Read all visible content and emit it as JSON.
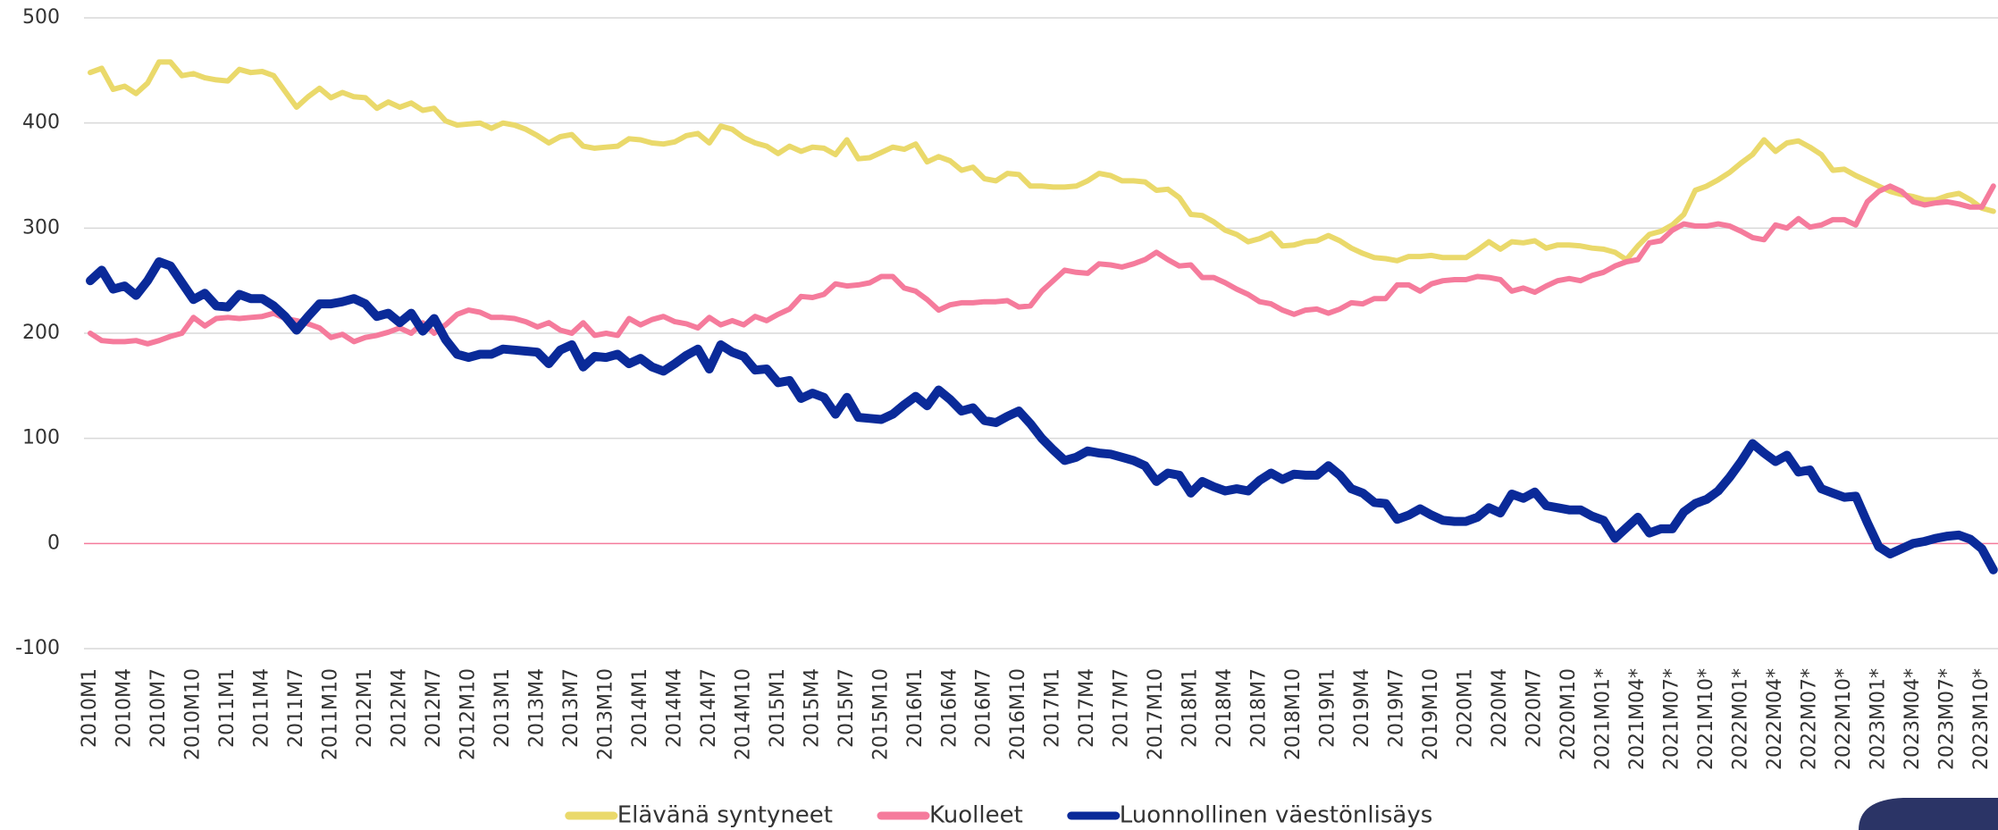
{
  "chart_data": {
    "type": "line",
    "categories": [
      "2010M1",
      null,
      null,
      "2010M4",
      null,
      null,
      "2010M7",
      null,
      null,
      "2010M10",
      null,
      null,
      "2011M1",
      null,
      null,
      "2011M4",
      null,
      null,
      "2011M7",
      null,
      null,
      "2011M10",
      null,
      null,
      "2012M1",
      null,
      null,
      "2012M4",
      null,
      null,
      "2012M7",
      null,
      null,
      "2012M10",
      null,
      null,
      "2013M1",
      null,
      null,
      "2013M4",
      null,
      null,
      "2013M7",
      null,
      null,
      "2013M10",
      null,
      null,
      "2014M1",
      null,
      null,
      "2014M4",
      null,
      null,
      "2014M7",
      null,
      null,
      "2014M10",
      null,
      null,
      "2015M1",
      null,
      null,
      "2015M4",
      null,
      null,
      "2015M7",
      null,
      null,
      "2015M10",
      null,
      null,
      "2016M1",
      null,
      null,
      "2016M4",
      null,
      null,
      "2016M7",
      null,
      null,
      "2016M10",
      null,
      null,
      "2017M1",
      null,
      null,
      "2017M4",
      null,
      null,
      "2017M7",
      null,
      null,
      "2017M10",
      null,
      null,
      "2018M1",
      null,
      null,
      "2018M4",
      null,
      null,
      "2018M7",
      null,
      null,
      "2018M10",
      null,
      null,
      "2019M1",
      null,
      null,
      "2019M4",
      null,
      null,
      "2019M7",
      null,
      null,
      "2019M10",
      null,
      null,
      "2020M1",
      null,
      null,
      "2020M4",
      null,
      null,
      "2020M7",
      null,
      null,
      "2020M10",
      null,
      null,
      "2021M01*",
      null,
      null,
      "2021M04*",
      null,
      null,
      "2021M07*",
      null,
      null,
      "2021M10*",
      null,
      null,
      "2022M01*",
      null,
      null,
      "2022M04*",
      null,
      null,
      "2022M07*",
      null,
      null,
      "2022M10*",
      null,
      null,
      "2023M01*",
      null,
      null,
      "2023M04*",
      null,
      null,
      "2023M07*",
      null,
      null,
      "2023M10*",
      null
    ],
    "series": [
      {
        "name": "Elävänä syntyneet",
        "color": "#ead96b",
        "values": [
          448,
          452,
          432,
          435,
          428,
          438,
          458,
          458,
          445,
          447,
          443,
          441,
          440,
          451,
          448,
          449,
          445,
          430,
          415,
          425,
          433,
          424,
          429,
          425,
          424,
          414,
          420,
          415,
          419,
          412,
          414,
          402,
          398,
          399,
          400,
          395,
          400,
          398,
          394,
          388,
          381,
          387,
          389,
          378,
          376,
          377,
          378,
          385,
          384,
          381,
          380,
          382,
          388,
          390,
          381,
          397,
          394,
          386,
          381,
          378,
          371,
          378,
          373,
          377,
          376,
          370,
          384,
          366,
          367,
          372,
          377,
          375,
          380,
          363,
          368,
          364,
          355,
          358,
          347,
          345,
          352,
          351,
          340,
          340,
          339,
          339,
          340,
          345,
          352,
          350,
          345,
          345,
          344,
          336,
          337,
          329,
          313,
          312,
          306,
          298,
          294,
          287,
          290,
          295,
          283,
          284,
          287,
          288,
          293,
          288,
          281,
          276,
          272,
          271,
          269,
          273,
          273,
          274,
          272,
          272,
          272,
          279,
          287,
          280,
          287,
          286,
          288,
          281,
          284,
          284,
          283,
          281,
          280,
          277,
          270,
          283,
          294,
          297,
          303,
          313,
          336,
          340,
          346,
          353,
          362,
          370,
          384,
          373,
          381,
          383,
          377,
          370,
          355,
          356,
          350,
          345,
          340,
          335,
          332,
          330,
          327,
          327,
          331,
          333,
          327,
          319,
          316
        ]
      },
      {
        "name": "Kuolleet",
        "color": "#f57b9c",
        "values": [
          200,
          193,
          192,
          192,
          193,
          190,
          193,
          197,
          200,
          215,
          207,
          214,
          215,
          214,
          215,
          216,
          219,
          214,
          212,
          209,
          205,
          196,
          199,
          192,
          196,
          198,
          201,
          205,
          200,
          210,
          200,
          208,
          218,
          222,
          220,
          215,
          215,
          214,
          211,
          206,
          210,
          203,
          200,
          210,
          198,
          200,
          198,
          214,
          208,
          213,
          216,
          211,
          209,
          205,
          215,
          208,
          212,
          208,
          216,
          212,
          218,
          223,
          235,
          234,
          237,
          247,
          245,
          246,
          248,
          254,
          254,
          243,
          240,
          232,
          222,
          227,
          229,
          229,
          230,
          230,
          231,
          225,
          226,
          240,
          250,
          260,
          258,
          257,
          266,
          265,
          263,
          266,
          270,
          277,
          270,
          264,
          265,
          253,
          253,
          248,
          242,
          237,
          230,
          228,
          222,
          218,
          222,
          223,
          219,
          223,
          229,
          228,
          233,
          233,
          246,
          246,
          240,
          247,
          250,
          251,
          251,
          254,
          253,
          251,
          240,
          243,
          239,
          245,
          250,
          252,
          250,
          255,
          258,
          264,
          268,
          270,
          286,
          288,
          298,
          304,
          302,
          302,
          304,
          302,
          297,
          291,
          289,
          303,
          300,
          309,
          301,
          303,
          308,
          308,
          303,
          325,
          335,
          340,
          335,
          325,
          322,
          324,
          325,
          323,
          320,
          320,
          340
        ]
      },
      {
        "name": "Luonnollinen väestönlisäys",
        "color": "#0a2a99",
        "values": [
          250,
          260,
          242,
          245,
          236,
          250,
          268,
          264,
          248,
          232,
          238,
          226,
          225,
          237,
          233,
          233,
          226,
          216,
          203,
          216,
          228,
          228,
          230,
          233,
          228,
          216,
          219,
          210,
          219,
          202,
          214,
          194,
          180,
          177,
          180,
          180,
          185,
          184,
          183,
          182,
          171,
          184,
          189,
          168,
          178,
          177,
          180,
          171,
          176,
          168,
          164,
          171,
          179,
          185,
          166,
          189,
          182,
          178,
          165,
          166,
          153,
          155,
          138,
          143,
          139,
          123,
          139,
          120,
          119,
          118,
          123,
          132,
          140,
          131,
          146,
          137,
          126,
          129,
          117,
          115,
          121,
          126,
          114,
          100,
          89,
          79,
          82,
          88,
          86,
          85,
          82,
          79,
          74,
          59,
          67,
          65,
          48,
          59,
          54,
          50,
          52,
          50,
          60,
          67,
          61,
          66,
          65,
          65,
          74,
          65,
          52,
          48,
          39,
          38,
          23,
          27,
          33,
          27,
          22,
          21,
          21,
          25,
          34,
          29,
          47,
          43,
          49,
          36,
          34,
          32,
          32,
          26,
          22,
          5,
          15,
          25,
          10,
          14,
          14,
          30,
          38,
          42,
          50,
          63,
          78,
          95,
          86,
          78,
          84,
          68,
          70,
          52,
          48,
          44,
          45,
          20,
          -3,
          -10,
          -5,
          0,
          2,
          5,
          7,
          8,
          4,
          -5,
          -25
        ]
      }
    ],
    "ylim": [
      -100,
      500
    ],
    "yticks": [
      -100,
      0,
      100,
      200,
      300,
      400,
      500
    ],
    "grid": true,
    "zero_line_color": "#f57b9c",
    "legend": "bottom"
  }
}
